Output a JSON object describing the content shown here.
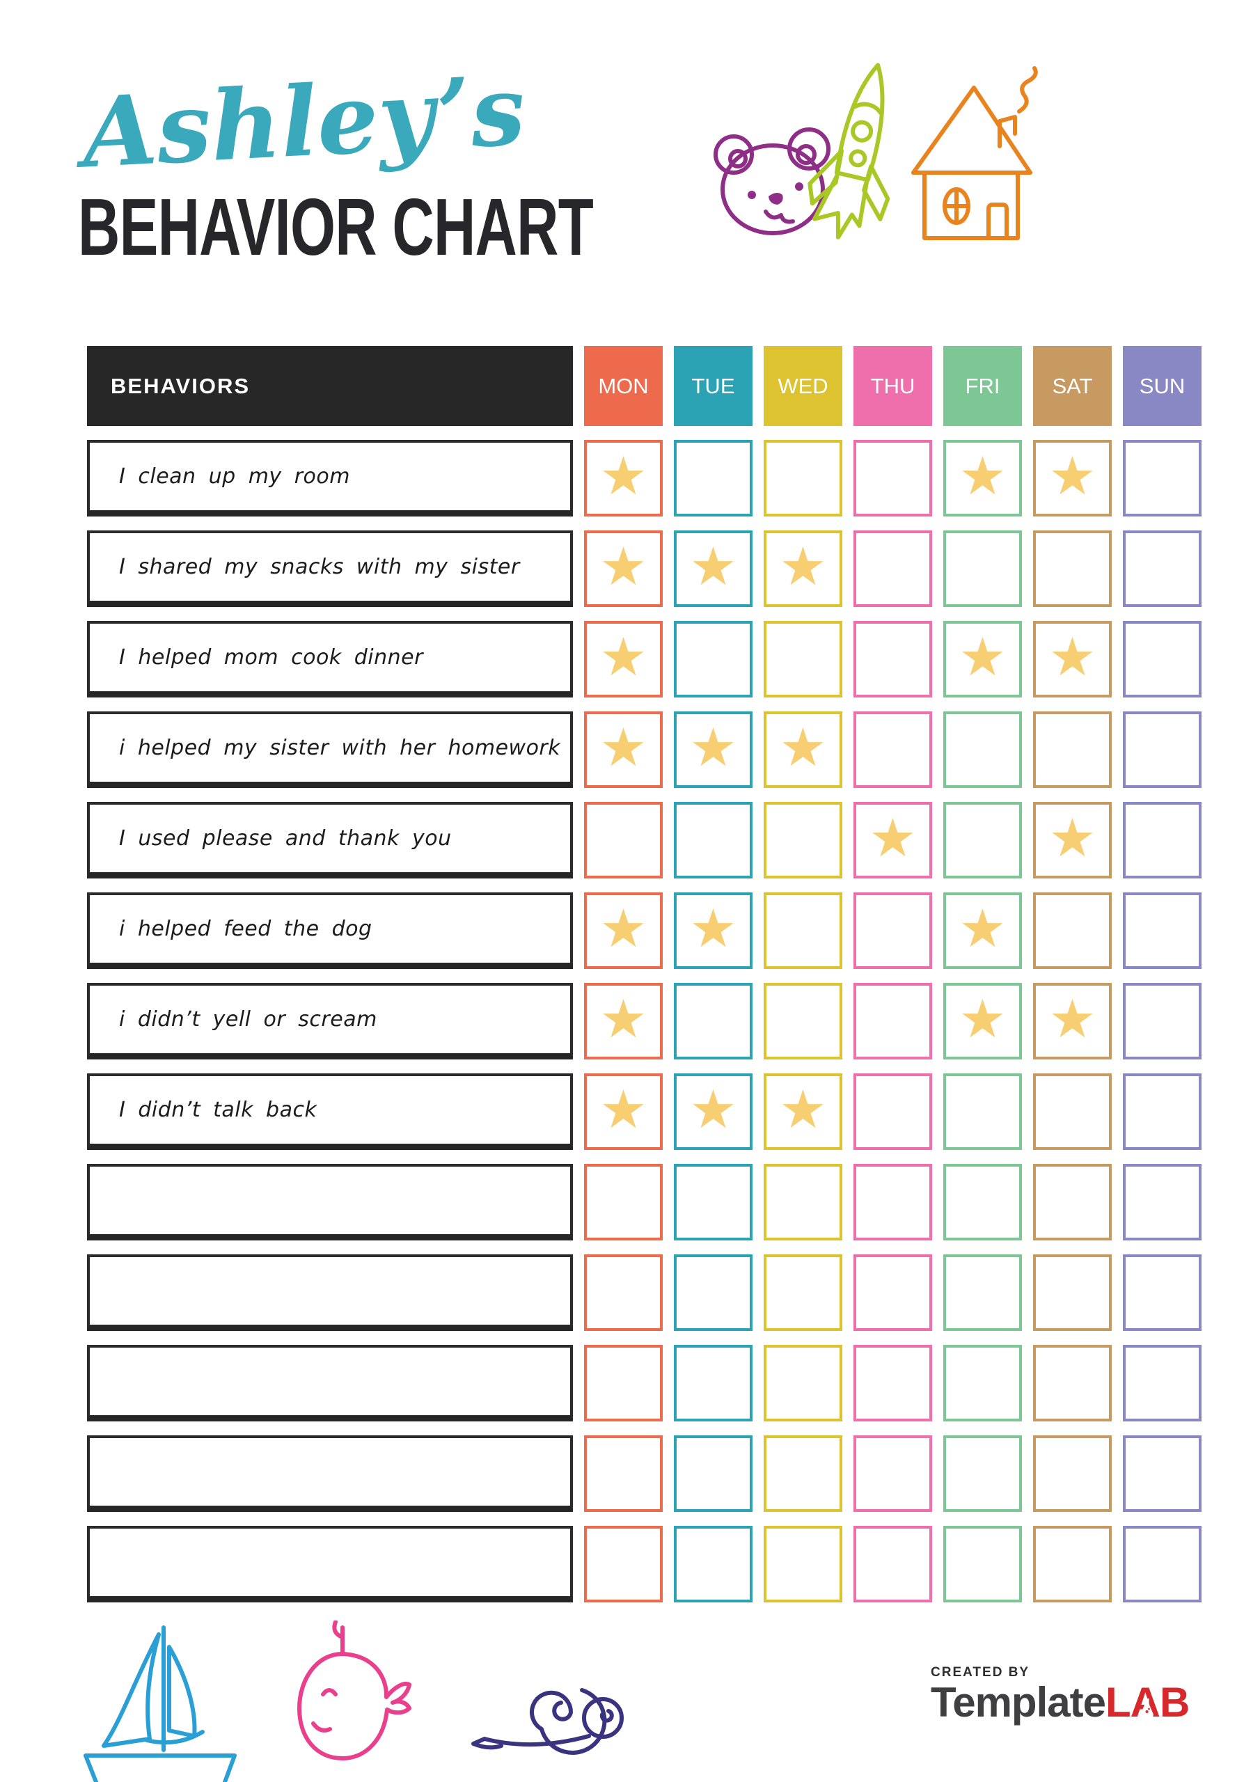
{
  "header": {
    "name_script": "Ashley’s",
    "title": "BEHAVIOR CHART"
  },
  "palette": {
    "script_teal": "#3aa9bc",
    "title_dark": "#27262b",
    "header_dark": "#272727",
    "logo_gray": "#3f3e40",
    "logo_red": "#d7282c"
  },
  "icons": {
    "bear": {
      "name": "bear-icon",
      "color": "#8f2e87"
    },
    "rocket": {
      "name": "rocket-icon",
      "color": "#a9c826"
    },
    "house": {
      "name": "house-icon",
      "color": "#e8831e"
    },
    "sailboat": {
      "name": "sailboat-icon",
      "color": "#2a9fd6"
    },
    "whale": {
      "name": "whale-icon",
      "color": "#e93f8d"
    },
    "snail": {
      "name": "snail-icon",
      "color": "#3a3380"
    }
  },
  "table": {
    "behaviors_header": "BEHAVIORS",
    "star_color": "#f8ce73",
    "star_glyph": "★",
    "days": [
      {
        "label": "MON",
        "color": "#ed6a4d"
      },
      {
        "label": "TUE",
        "color": "#2ba3b4"
      },
      {
        "label": "WED",
        "color": "#ddc32f"
      },
      {
        "label": "THU",
        "color": "#ef6fad"
      },
      {
        "label": "FRI",
        "color": "#7cc794"
      },
      {
        "label": "SAT",
        "color": "#c79a62"
      },
      {
        "label": "SUN",
        "color": "#8a87c5"
      }
    ],
    "rows": [
      {
        "label": "I clean up my room",
        "stars": [
          "MON",
          "FRI",
          "SAT"
        ]
      },
      {
        "label": "I shared my snacks with my sister",
        "stars": [
          "MON",
          "TUE",
          "WED"
        ]
      },
      {
        "label": "I helped mom cook dinner",
        "stars": [
          "MON",
          "FRI",
          "SAT"
        ]
      },
      {
        "label": "i helped my sister with her homework",
        "stars": [
          "MON",
          "TUE",
          "WED"
        ]
      },
      {
        "label": "I used please and thank you",
        "stars": [
          "THU",
          "SAT"
        ]
      },
      {
        "label": "i helped feed the dog",
        "stars": [
          "MON",
          "TUE",
          "FRI"
        ]
      },
      {
        "label": "i didn’t yell or scream",
        "stars": [
          "MON",
          "FRI",
          "SAT"
        ]
      },
      {
        "label": "I didn’t talk back",
        "stars": [
          "MON",
          "TUE",
          "WED"
        ]
      },
      {
        "label": "",
        "stars": []
      },
      {
        "label": "",
        "stars": []
      },
      {
        "label": "",
        "stars": []
      },
      {
        "label": "",
        "stars": []
      },
      {
        "label": "",
        "stars": []
      }
    ]
  },
  "footer": {
    "created_by": "CREATED BY",
    "brand_template": "Template",
    "brand_lab": "LAB"
  }
}
